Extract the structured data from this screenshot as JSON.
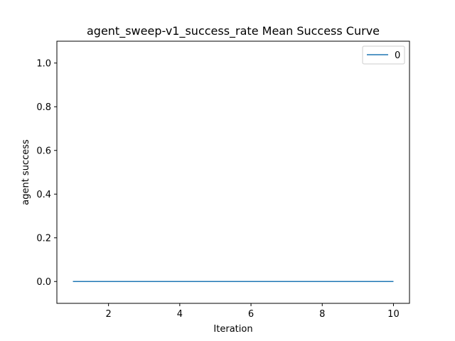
{
  "chart_data": {
    "type": "line",
    "title": "agent_sweep-v1_success_rate Mean Success Curve",
    "xlabel": "Iteration",
    "ylabel": "agent success",
    "xlim": [
      0.55,
      10.45
    ],
    "ylim": [
      -0.1,
      1.1
    ],
    "xticks": [
      2,
      4,
      6,
      8,
      10
    ],
    "yticks": [
      0.0,
      0.2,
      0.4,
      0.6,
      0.8,
      1.0
    ],
    "ytick_labels": [
      "0.0",
      "0.2",
      "0.4",
      "0.6",
      "0.8",
      "1.0"
    ],
    "grid": false,
    "legend_position": "upper right",
    "series": [
      {
        "name": "0",
        "color": "#1f77b4",
        "x": [
          1,
          2,
          3,
          4,
          5,
          6,
          7,
          8,
          9,
          10
        ],
        "y": [
          0,
          0,
          0,
          0,
          0,
          0,
          0,
          0,
          0,
          0
        ]
      }
    ]
  }
}
